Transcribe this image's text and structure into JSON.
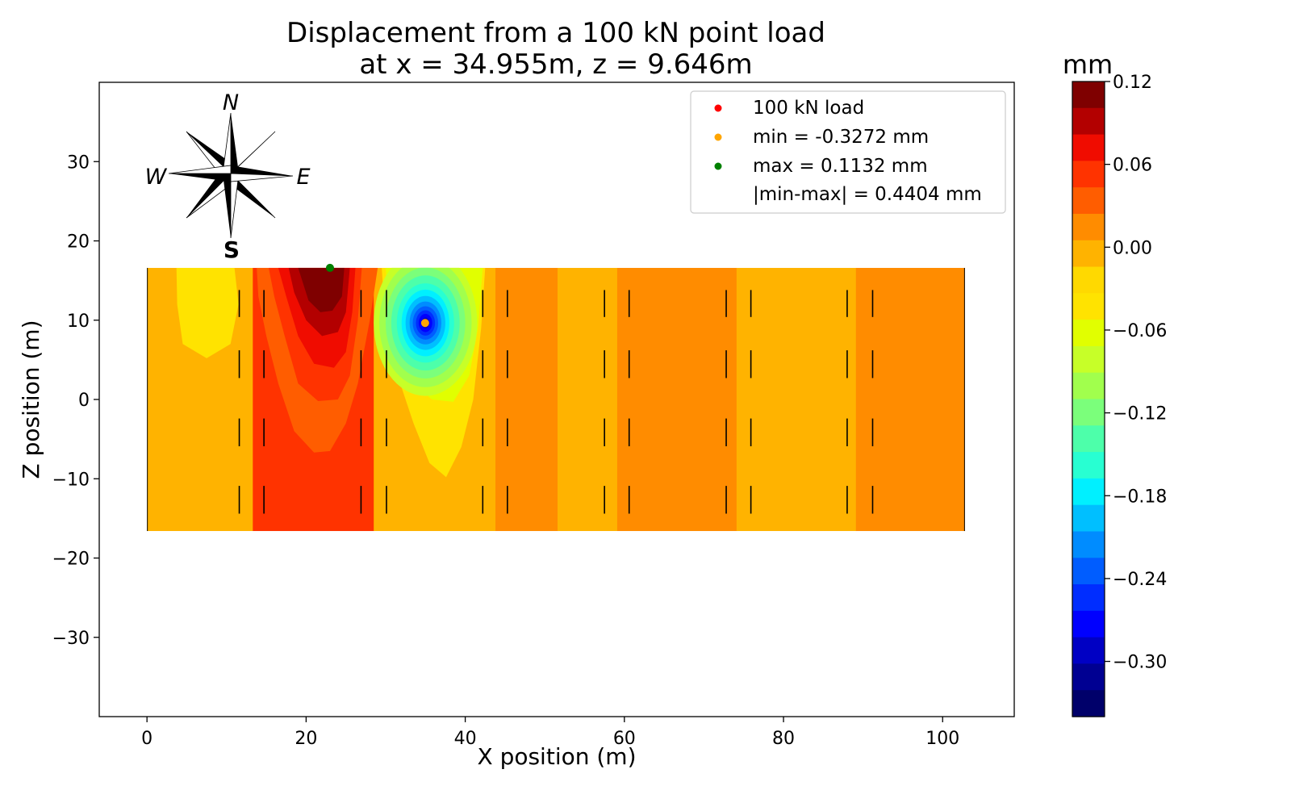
{
  "chart_data": {
    "type": "heatmap",
    "title_line1": "Displacement from a 100 kN point load",
    "title_line2": "at x = 34.955m, z = 9.646m",
    "xlabel": "X position (m)",
    "ylabel": "Z position (m)",
    "xlim": [
      -6,
      109
    ],
    "ylim": [
      -40,
      40
    ],
    "xticks": [
      0,
      20,
      40,
      60,
      80,
      100
    ],
    "yticks": [
      -30,
      -20,
      -10,
      0,
      10,
      20,
      30
    ],
    "grid": false,
    "domain": {
      "x": [
        0,
        102.8
      ],
      "z": [
        -16.6,
        16.6
      ]
    },
    "field_bands": [
      {
        "x": [
          0,
          13.3
        ],
        "value": -0.01
      },
      {
        "x": [
          13.3,
          28.5
        ],
        "value": 0.04
      },
      {
        "x": [
          28.5,
          43.8
        ],
        "value": -0.01
      },
      {
        "x": [
          43.8,
          51.6
        ],
        "value": 0.02
      },
      {
        "x": [
          51.6,
          59.1
        ],
        "value": -0.01
      },
      {
        "x": [
          59.1,
          74.1
        ],
        "value": 0.02
      },
      {
        "x": [
          74.1,
          89.1
        ],
        "value": -0.01
      },
      {
        "x": [
          89.1,
          102.8
        ],
        "value": 0.02
      }
    ],
    "field_regions": [
      {
        "level": "-0.05",
        "polygon": [
          [
            3.7,
            16.6
          ],
          [
            11.0,
            16.6
          ],
          [
            11.5,
            12
          ],
          [
            10.5,
            7
          ],
          [
            7.5,
            5.2
          ],
          [
            4.5,
            7
          ],
          [
            3.8,
            12
          ]
        ]
      },
      {
        "level": "0.03",
        "polygon": [
          [
            13.8,
            16.6
          ],
          [
            29.0,
            16.6
          ],
          [
            28.0,
            10
          ],
          [
            26.5,
            2
          ],
          [
            25.0,
            -3
          ],
          [
            23,
            -6.5
          ],
          [
            21,
            -6.7
          ],
          [
            18.5,
            -4
          ],
          [
            16.5,
            2
          ],
          [
            15,
            8
          ],
          [
            14,
            13
          ]
        ]
      },
      {
        "level": "0.05",
        "polygon": [
          [
            15.3,
            16.6
          ],
          [
            27.0,
            16.6
          ],
          [
            26.5,
            10
          ],
          [
            25.5,
            3
          ],
          [
            24,
            0
          ],
          [
            21.5,
            -0.2
          ],
          [
            19,
            2
          ],
          [
            17.3,
            8
          ],
          [
            16,
            13
          ]
        ]
      },
      {
        "level": "0.07",
        "polygon": [
          [
            16.5,
            16.6
          ],
          [
            26.2,
            16.6
          ],
          [
            25.8,
            11
          ],
          [
            25,
            6
          ],
          [
            23.5,
            4
          ],
          [
            21,
            4.5
          ],
          [
            19,
            8
          ],
          [
            17.5,
            13
          ]
        ]
      },
      {
        "level": "0.09",
        "polygon": [
          [
            17.8,
            16.6
          ],
          [
            25.5,
            16.6
          ],
          [
            25,
            11
          ],
          [
            24,
            8.5
          ],
          [
            22,
            8
          ],
          [
            20,
            10
          ],
          [
            18.5,
            13.5
          ]
        ]
      },
      {
        "level": "0.11",
        "polygon": [
          [
            19.0,
            16.6
          ],
          [
            24.8,
            16.6
          ],
          [
            24.5,
            13
          ],
          [
            23.3,
            11.2
          ],
          [
            21.8,
            11
          ],
          [
            20.3,
            12.5
          ]
        ]
      },
      {
        "level": "-0.05",
        "polygon": [
          [
            29.5,
            16.6
          ],
          [
            42.5,
            16.6
          ],
          [
            42,
            9
          ],
          [
            41,
            0
          ],
          [
            39.5,
            -6
          ],
          [
            37.6,
            -9.8
          ],
          [
            35.5,
            -8
          ],
          [
            33.5,
            -3
          ],
          [
            31.5,
            3
          ],
          [
            30,
            9
          ]
        ]
      },
      {
        "level": "-0.07",
        "polygon": [
          [
            30.0,
            16.6
          ],
          [
            42.2,
            16.6
          ],
          [
            41.6,
            9
          ],
          [
            40.5,
            3
          ],
          [
            38.5,
            -0.3
          ],
          [
            35.8,
            0
          ],
          [
            33,
            2.5
          ],
          [
            31.2,
            8
          ],
          [
            30.3,
            12
          ]
        ]
      }
    ],
    "field_center": {
      "x": 35.0,
      "z": 9.65
    },
    "field_ellipses": [
      {
        "level": "-0.09",
        "rx": 6.5,
        "rz": 9.2
      },
      {
        "level": "-0.11",
        "rx": 5.8,
        "rz": 8.1
      },
      {
        "level": "-0.13",
        "rx": 5.0,
        "rz": 7.0
      },
      {
        "level": "-0.15",
        "rx": 4.3,
        "rz": 6.0
      },
      {
        "level": "-0.17",
        "rx": 3.6,
        "rz": 5.0
      },
      {
        "level": "-0.19",
        "rx": 3.0,
        "rz": 4.2
      },
      {
        "level": "-0.21",
        "rx": 2.5,
        "rz": 3.4
      },
      {
        "level": "-0.23",
        "rx": 2.0,
        "rz": 2.7
      },
      {
        "level": "-0.25",
        "rx": 1.6,
        "rz": 2.1
      },
      {
        "level": "-0.27",
        "rx": 1.2,
        "rz": 1.6
      },
      {
        "level": "-0.29",
        "rx": 0.85,
        "rz": 1.15
      },
      {
        "level": "-0.31",
        "rx": 0.5,
        "rz": 0.7
      }
    ],
    "section_marks": {
      "x": [
        11.6,
        14.7,
        26.9,
        30.1,
        42.2,
        45.3,
        57.5,
        60.6,
        72.8,
        75.9,
        88.0,
        91.2
      ],
      "z_segments": [
        [
          10.4,
          13.8
        ],
        [
          2.7,
          6.2
        ],
        [
          -5.9,
          -2.4
        ],
        [
          -14.4,
          -10.9
        ]
      ]
    },
    "points": [
      {
        "name": "100 kN load",
        "x": 34.955,
        "y": 9.646,
        "color": "#ff0000"
      },
      {
        "name": "min = -0.3272 mm",
        "x": 34.955,
        "y": 9.646,
        "color": "#ffa500"
      },
      {
        "name": "max = 0.1132 mm",
        "x": 23.0,
        "y": 16.6,
        "color": "#008000"
      }
    ],
    "legend": {
      "position": "upper right",
      "entries": [
        {
          "label": "100 kN load",
          "color": "#ff0000"
        },
        {
          "label": "min = -0.3272 mm",
          "color": "#ffa500"
        },
        {
          "label": "max = 0.1132 mm",
          "color": "#008000"
        },
        {
          "label": "|min-max| = 0.4404 mm",
          "color": null
        }
      ]
    },
    "colorbar": {
      "label": "mm",
      "range": [
        -0.34,
        0.12
      ],
      "ticks": [
        "0.12",
        "0.06",
        "0.00",
        "−0.06",
        "−0.12",
        "−0.18",
        "−0.24",
        "−0.30"
      ],
      "tick_values": [
        0.12,
        0.06,
        0.0,
        -0.06,
        -0.12,
        -0.18,
        -0.24,
        -0.3
      ],
      "levels": [
        {
          "level": "0.11",
          "color": "#7f0000"
        },
        {
          "level": "0.09",
          "color": "#b30000"
        },
        {
          "level": "0.07",
          "color": "#f00c00"
        },
        {
          "level": "0.05",
          "color": "#ff3300"
        },
        {
          "level": "0.03",
          "color": "#ff5d00"
        },
        {
          "level": "0.02",
          "color": "#ff8c00"
        },
        {
          "level": "-0.01",
          "color": "#ffb300"
        },
        {
          "level": "-0.03",
          "color": "#ffd900"
        },
        {
          "level": "-0.05",
          "color": "#ffe300"
        },
        {
          "level": "-0.07",
          "color": "#e1ff00"
        },
        {
          "level": "-0.09",
          "color": "#c7ff28"
        },
        {
          "level": "-0.11",
          "color": "#a1ff4d"
        },
        {
          "level": "-0.13",
          "color": "#7bff7b"
        },
        {
          "level": "-0.15",
          "color": "#4dffaa"
        },
        {
          "level": "-0.17",
          "color": "#28ffd2"
        },
        {
          "level": "-0.19",
          "color": "#00f0ff"
        },
        {
          "level": "-0.21",
          "color": "#00bfff"
        },
        {
          "level": "-0.23",
          "color": "#008cff"
        },
        {
          "level": "-0.25",
          "color": "#005dff"
        },
        {
          "level": "-0.27",
          "color": "#002dff"
        },
        {
          "level": "-0.29",
          "color": "#0000ff"
        },
        {
          "level": "-0.31",
          "color": "#0000c4"
        },
        {
          "level": "-0.33",
          "color": "#000092"
        },
        {
          "level": "-0.35",
          "color": "#00006a"
        }
      ]
    },
    "compass": {
      "N": "N",
      "E": "E",
      "S": "S",
      "W": "W"
    }
  }
}
